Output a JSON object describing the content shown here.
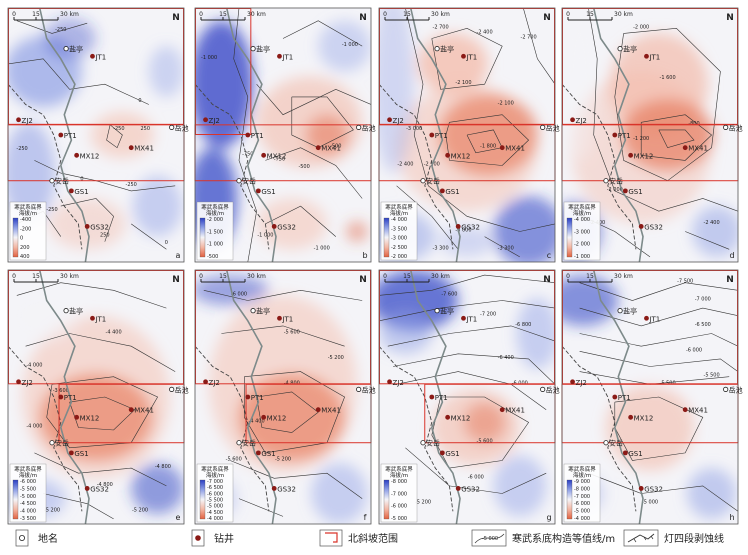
{
  "panels": [
    {
      "letter": "a",
      "colors": [
        "#2b3fc4",
        "#8fa0e6",
        "#f4f4f8",
        "#f3b7a4",
        "#e2613f"
      ],
      "scale": {
        "title": "寒武系底界",
        "unit": "海拔/m",
        "ticks": [
          "-400",
          "-200",
          "0",
          "200",
          "400"
        ]
      },
      "wells": [
        "JT1",
        "ZJ2",
        "PT1",
        "MX12",
        "MX41",
        "GS1",
        "GS32"
      ],
      "towns": [
        "盐亭",
        "岳池",
        "安岳"
      ],
      "contours": [
        "-250",
        "0",
        "-250",
        "0",
        "250",
        "-250",
        "250",
        "-250",
        "-250",
        "0"
      ]
    },
    {
      "letter": "b",
      "colors": [
        "#2b3fc4",
        "#8fa0e6",
        "#f4f4f8",
        "#f3b7a4",
        "#e2613f"
      ],
      "scale": {
        "title": "寒武系底界",
        "unit": "海拔/m",
        "ticks": [
          "-2 000",
          "-1 500",
          "-1 000",
          "-500"
        ]
      },
      "wells": [
        "JT1",
        "ZJ2",
        "PT1",
        "MX12",
        "MX41",
        "GS1",
        "GS32"
      ],
      "towns": [
        "盐亭",
        "岳池",
        "安岳"
      ],
      "contours": [
        "-1 000",
        "-750",
        "-750",
        "-500",
        "-1 000",
        "-1 000",
        "-500",
        "-1 000"
      ]
    },
    {
      "letter": "c",
      "colors": [
        "#2b3fc4",
        "#8fa0e6",
        "#f4f4f8",
        "#f3b7a4",
        "#e2613f"
      ],
      "scale": {
        "title": "寒武系底界",
        "unit": "海拔/m",
        "ticks": [
          "-4 000",
          "-3 500",
          "-3 000",
          "-2 500",
          "-2 000"
        ]
      },
      "wells": [
        "JT1",
        "ZJ2",
        "PT1",
        "MX12",
        "MX41",
        "GS1",
        "GS32"
      ],
      "towns": [
        "盐亭",
        "岳池",
        "安岳"
      ],
      "contours": [
        "-2 700",
        "-2 400",
        "-2 100",
        "-2 100",
        "-1 800",
        "-2 100",
        "-2 400",
        "-3 000",
        "-3 300",
        "-3 300",
        "-2 700",
        "-3 000"
      ]
    },
    {
      "letter": "d",
      "colors": [
        "#2b3fc4",
        "#8fa0e6",
        "#f4f4f8",
        "#f3b7a4",
        "#e2613f"
      ],
      "scale": {
        "title": "寒武系底界",
        "unit": "海拔/m",
        "ticks": [
          "-4 000",
          "-3 000",
          "-2 000",
          "-1 000"
        ]
      },
      "wells": [
        "JT1",
        "ZJ2",
        "PT1",
        "MX12",
        "MX41",
        "GS1",
        "GS32"
      ],
      "towns": [
        "盐亭",
        "岳池",
        "安岳"
      ],
      "contours": [
        "-2 000",
        "-1 600",
        "-1 200",
        "-800",
        "-2 000",
        "-2 400",
        "-2 400"
      ]
    },
    {
      "letter": "e",
      "colors": [
        "#2b3fc4",
        "#8fa0e6",
        "#f4f4f8",
        "#f3b7a4",
        "#e2613f"
      ],
      "scale": {
        "title": "寒武系底界",
        "unit": "海拔/m",
        "ticks": [
          "-6 000",
          "-5 500",
          "-5 000",
          "-4 500",
          "-4 000",
          "-3 500"
        ]
      },
      "wells": [
        "JT1",
        "ZJ2",
        "PT1",
        "MX12",
        "MX41",
        "GS1",
        "GS32"
      ],
      "towns": [
        "盐亭",
        "岳池",
        "安岳"
      ],
      "contours": [
        "-4 400",
        "-4 000",
        "-3 600",
        "-4 000",
        "-4 800",
        "-5 200",
        "-5 200",
        "-4 800"
      ]
    },
    {
      "letter": "f",
      "colors": [
        "#2b3fc4",
        "#8fa0e6",
        "#f4f4f8",
        "#f3b7a4",
        "#e2613f"
      ],
      "scale": {
        "title": "寒武系底界",
        "unit": "海拔/m",
        "ticks": [
          "-7 000",
          "-6 500",
          "-6 000",
          "-5 500",
          "-5 000",
          "-4 500",
          "-4 000"
        ]
      },
      "wells": [
        "JT1",
        "ZJ2",
        "PT1",
        "MX12",
        "MX41",
        "GS1",
        "GS32"
      ],
      "towns": [
        "盐亭",
        "岳池",
        "安岳"
      ],
      "contours": [
        "-6 000",
        "-5 600",
        "-5 200",
        "-4 800",
        "-4 400",
        "-5 600",
        "-5 200"
      ]
    },
    {
      "letter": "g",
      "colors": [
        "#2b3fc4",
        "#8fa0e6",
        "#f4f4f8",
        "#f3b7a4",
        "#e2613f"
      ],
      "scale": {
        "title": "寒武系底界",
        "unit": "海拔/m",
        "ticks": [
          "-8 000",
          "-7 000",
          "-6 000",
          "-5 000"
        ]
      },
      "wells": [
        "JT1",
        "ZJ2",
        "PT1",
        "MX12",
        "MX41",
        "GS1",
        "GS32"
      ],
      "towns": [
        "盐亭",
        "岳池",
        "安岳"
      ],
      "contours": [
        "-7 600",
        "-7 200",
        "-6 800",
        "-6 400",
        "-6 000",
        "-5 600",
        "-5 200",
        "-6 000"
      ]
    },
    {
      "letter": "h",
      "colors": [
        "#2b3fc4",
        "#8fa0e6",
        "#f4f4f8",
        "#f3b7a4",
        "#e2613f"
      ],
      "scale": {
        "title": "寒武系底界",
        "unit": "海拔/m",
        "ticks": [
          "-9 000",
          "-8 000",
          "-7 000",
          "-6 000",
          "-5 000",
          "-4 000"
        ]
      },
      "wells": [
        "JT1",
        "ZJ2",
        "PT1",
        "MX12",
        "MX41",
        "GS1",
        "GS32"
      ],
      "towns": [
        "盐亭",
        "岳池",
        "安岳"
      ],
      "contours": [
        "-7 500",
        "-7 000",
        "-6 500",
        "-6 000",
        "-5 500",
        "-5 000",
        "-5 500"
      ]
    }
  ],
  "scale_bar": {
    "ticks": [
      "0",
      "15",
      "30 km"
    ]
  },
  "north": "N",
  "legend": {
    "place": "地名",
    "well": "钻井",
    "range": "北斜坡范围",
    "contour": "寒武系底构造等值线/m",
    "contour_sample": "-5 000",
    "erosion": "灯四段剥蚀线"
  },
  "colors": {
    "frame": "#555555",
    "range": "#d9342b",
    "well": "#8b1a16",
    "river": "#7d8a8a"
  }
}
